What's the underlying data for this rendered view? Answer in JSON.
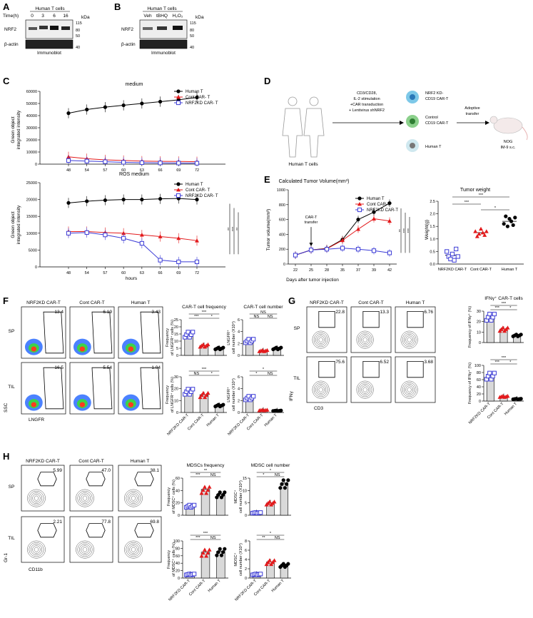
{
  "panels": {
    "A": {
      "letter": "A",
      "group": "Human T cells",
      "time_label": "Time(h)",
      "times": [
        "0",
        "3",
        "6",
        "16"
      ],
      "kda": "kDa",
      "markers": [
        "115",
        "80",
        "50",
        "40"
      ],
      "bands": [
        "NRF2",
        "β-actin"
      ],
      "footer": "Immunoblot"
    },
    "B": {
      "letter": "B",
      "group": "Human T cells",
      "lanes": [
        "Veh",
        "tBHQ",
        "H₂O₂"
      ],
      "kda": "kDa",
      "markers": [
        "115",
        "80",
        "50",
        "40"
      ],
      "bands": [
        "NRF2",
        "β-actin"
      ],
      "footer": "Immunoblot"
    },
    "C": {
      "letter": "C",
      "ylabel1": "Green object",
      "ylabel2": "integrated intensity",
      "xlabel": "hours"
    },
    "D": {
      "letter": "D",
      "source": "Human T cells",
      "steps": [
        "CD3/CD28,",
        "IL-2 stimulation",
        "+CAR transduction",
        "+ Lentivirus shNRF2"
      ],
      "cells": [
        "NRF2 KD-",
        "CD19 CAR-T",
        "Control",
        "CD19 CAR-T",
        "Human T"
      ],
      "transfer": [
        "Adoptive",
        "transfer"
      ],
      "mouse": [
        "NOG",
        "IM-9 s.c."
      ]
    },
    "E": {
      "letter": "E"
    },
    "F": {
      "letter": "F",
      "cols": [
        "NRF2KD CAR-T",
        "Cont CAR-T",
        "Human T"
      ],
      "rows": [
        "SP",
        "TIL"
      ],
      "gates": [
        [
          "13.4",
          "6.19",
          "3.43"
        ],
        [
          "16.5",
          "5.54",
          "1.04"
        ]
      ],
      "xaxis": "LNGFR",
      "yaxis": "SSC",
      "freq_title": "CAR-T cell frequency",
      "num_title": "CAR-T cell number",
      "freq_ylabel": [
        "Frequency",
        "of LNGFR⁺ cells (%)"
      ],
      "num_ylabel": [
        "LNGFR⁺",
        "cell number (X10⁴)"
      ],
      "freq_yticks": [
        "0",
        "5",
        "10",
        "15",
        "20",
        "25"
      ],
      "freq_yticks2": [
        "0",
        "10",
        "20",
        "30"
      ],
      "num_yticks": [
        "0",
        "2",
        "4",
        "6"
      ],
      "sig_freq_top": [
        "***",
        "***",
        "*"
      ],
      "sig_num_top": [
        "NS",
        "NS",
        "NS"
      ],
      "sig_freq_bot": [
        "***",
        "NS",
        "*"
      ],
      "sig_num_bot": [
        "*",
        "*",
        "NS"
      ]
    },
    "G": {
      "letter": "G",
      "cols": [
        "NRF2KD CAR-T",
        "Cont CAR-T",
        "Human T"
      ],
      "rows": [
        "SP",
        "TIL"
      ],
      "gates": [
        [
          "22.8",
          "13.3",
          "6.76"
        ],
        [
          "75.6",
          "6.52",
          "3.68"
        ]
      ],
      "xaxis": "CD3",
      "yaxis": "IFNγ",
      "title": "IFNγ⁺ CAR-T cells",
      "ylabel": [
        "Frequency of IFNγ⁺ (%)"
      ],
      "yticks_top": [
        "0",
        "10",
        "20",
        "30"
      ],
      "yticks_bot": [
        "0",
        "20",
        "40",
        "60",
        "80",
        "100"
      ],
      "sig_top": [
        "***",
        "***",
        "*"
      ],
      "sig_bot": [
        "***",
        "***",
        "*"
      ]
    },
    "H": {
      "letter": "H",
      "cols": [
        "NRF2KD CAR-T",
        "Cont CAR-T",
        "Human T"
      ],
      "rows": [
        "SP",
        "TIL"
      ],
      "gates": [
        [
          "5.99",
          "47.0",
          "38.1"
        ],
        [
          "2.21",
          "77.8",
          "69.8"
        ]
      ],
      "xaxis": "CD11b",
      "yaxis": "Gr-1",
      "freq_title": "MDSCs frequency",
      "num_title": "MDSC cell number",
      "freq_ylabel": [
        "Frequency",
        "of MDSC⁺ cells (%)"
      ],
      "num_ylabel": [
        "MDSC⁺",
        "cell number (X10⁴)"
      ],
      "freq_yticks": [
        "0",
        "20",
        "40",
        "60"
      ],
      "freq_yticks2": [
        "0",
        "20",
        "40",
        "60",
        "80",
        "100"
      ],
      "num_yticks": [
        "0",
        "5",
        "10",
        "15"
      ],
      "num_yticks2": [
        "0",
        "2",
        "4",
        "6",
        "8"
      ],
      "sig_freq_top": [
        "**",
        "***",
        "NS"
      ],
      "sig_num_top": [
        "*",
        "*",
        "NS"
      ],
      "sig_freq_bot": [
        "***",
        "***",
        "NS"
      ],
      "sig_num_bot": [
        "*",
        "**",
        "NS"
      ]
    }
  },
  "bar_xlabels": [
    "NRF2KD CAR-T",
    "Cont CAR-T",
    "Human T"
  ],
  "colors": {
    "human_t": "#000000",
    "cont": "#e31a1c",
    "kd": "#3b3bd6",
    "bar": "#d9d9d9"
  },
  "chart_data": [
    {
      "type": "line",
      "title": "medium",
      "ylabel": "Green object integrated intensity",
      "xlabel": "hours",
      "x": [
        48,
        54,
        57,
        60,
        63,
        66,
        69,
        72
      ],
      "ylim": [
        0,
        60000
      ],
      "yticks": [
        "0",
        "10000",
        "20000",
        "30000",
        "40000",
        "50000",
        "60000"
      ],
      "legend_position": "top-right",
      "series": [
        {
          "name": "Human T",
          "values": [
            42000,
            45000,
            47000,
            48500,
            50000,
            51500,
            53000,
            55000
          ]
        },
        {
          "name": "Cont CAR- T",
          "values": [
            6000,
            4500,
            3500,
            3000,
            2500,
            2300,
            2200,
            2000
          ]
        },
        {
          "name": "NRF2KD CAR- T",
          "values": [
            3000,
            2500,
            2000,
            1500,
            1200,
            1000,
            900,
            800
          ]
        }
      ]
    },
    {
      "type": "line",
      "title": "ROS medium",
      "ylabel": "Green object integrated intensity",
      "xlabel": "hours",
      "x": [
        48,
        54,
        57,
        60,
        63,
        66,
        69,
        72
      ],
      "ylim": [
        0,
        25000
      ],
      "yticks": [
        "0",
        "5000",
        "10000",
        "15000",
        "20000",
        "25000"
      ],
      "legend_position": "top-right",
      "significance": [
        "**",
        "***",
        "**"
      ],
      "series": [
        {
          "name": "Human T",
          "values": [
            19000,
            19500,
            19800,
            20000,
            20000,
            20200,
            20300,
            20000
          ]
        },
        {
          "name": "Cont CAR- T",
          "values": [
            10500,
            10500,
            10200,
            10000,
            9500,
            9000,
            8500,
            7800
          ]
        },
        {
          "name": "NRF2KD CAR- T",
          "values": [
            10000,
            10200,
            9500,
            8500,
            7000,
            2000,
            1500,
            1500
          ]
        }
      ]
    },
    {
      "type": "line",
      "title": "Calculated Tumor Volume(mm³)",
      "ylabel": "Tumor volume(mm³)",
      "xlabel": "Days after tumor injection",
      "x": [
        22,
        25,
        28,
        35,
        37,
        39,
        42
      ],
      "ylim": [
        0,
        1000
      ],
      "yticks": [
        "0",
        "200",
        "400",
        "600",
        "800",
        "1000"
      ],
      "annotation": "CAR-T transfer",
      "significance": [
        "**",
        "***",
        "***"
      ],
      "series": [
        {
          "name": "Human T",
          "values": [
            120,
            190,
            210,
            330,
            600,
            700,
            820
          ]
        },
        {
          "name": "Cont CAR-T",
          "values": [
            120,
            190,
            205,
            320,
            470,
            610,
            580
          ]
        },
        {
          "name": "NRF2KD CAR-T",
          "values": [
            120,
            190,
            200,
            215,
            200,
            180,
            150
          ]
        }
      ]
    },
    {
      "type": "scatter",
      "title": "Tumor weight",
      "ylabel": "Weight(g)",
      "categories": [
        "NRF2KD CAR-T",
        "Cont CAR-T",
        "Human T"
      ],
      "ylim": [
        0,
        2.5
      ],
      "yticks": [
        "0.0",
        "0.5",
        "1.0",
        "1.5",
        "2.0",
        "2.5"
      ],
      "significance": [
        "***",
        "***",
        "*"
      ],
      "means": [
        0.35,
        1.25,
        1.7
      ],
      "points": [
        [
          0.5,
          0.3,
          0.2,
          0.4,
          0.15,
          0.6,
          0.3
        ],
        [
          1.3,
          1.1,
          1.2,
          1.4,
          1.25,
          1.15,
          1.3
        ],
        [
          1.6,
          1.9,
          1.5,
          1.8,
          1.7,
          1.55,
          1.85
        ]
      ]
    }
  ]
}
